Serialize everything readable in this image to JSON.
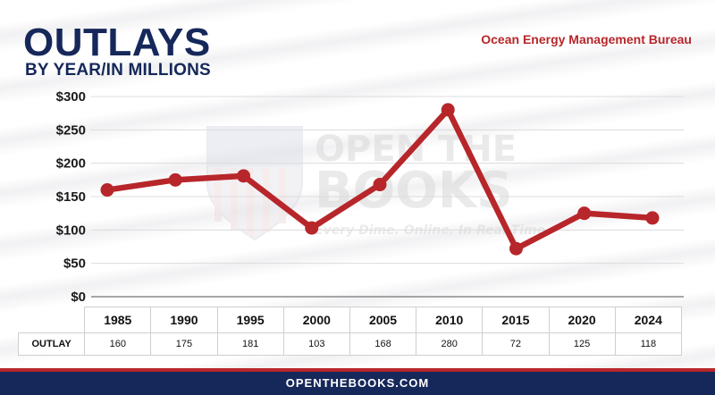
{
  "header": {
    "title": "OUTLAYS",
    "subtitle": "BY YEAR/IN MILLIONS",
    "agency": "Ocean Energy Management Bureau"
  },
  "watermark": {
    "line1": "OPEN THE",
    "line2": "BOOKS",
    "tagline": "Every Dime. Online. In Real Time."
  },
  "table": {
    "row_label": "OUTLAY",
    "years": [
      "1985",
      "1990",
      "1995",
      "2000",
      "2005",
      "2010",
      "2015",
      "2020",
      "2024"
    ],
    "values": [
      "160",
      "175",
      "181",
      "103",
      "168",
      "280",
      "72",
      "125",
      "118"
    ]
  },
  "chart_data": {
    "type": "line",
    "title": "OUTLAYS",
    "subtitle": "BY YEAR/IN MILLIONS",
    "categories": [
      "1985",
      "1990",
      "1995",
      "2000",
      "2005",
      "2010",
      "2015",
      "2020",
      "2024"
    ],
    "values": [
      160,
      175,
      181,
      103,
      168,
      280,
      72,
      125,
      118
    ],
    "ylim": [
      0,
      300
    ],
    "yticks": [
      "$0",
      "$50",
      "$100",
      "$150",
      "$200",
      "$250",
      "$300"
    ],
    "grid": true,
    "color": "#b7262a"
  },
  "footer": {
    "site": "OPENTHEBOOKS.COM"
  },
  "colors": {
    "navy": "#16285a",
    "red": "#b7262a"
  }
}
